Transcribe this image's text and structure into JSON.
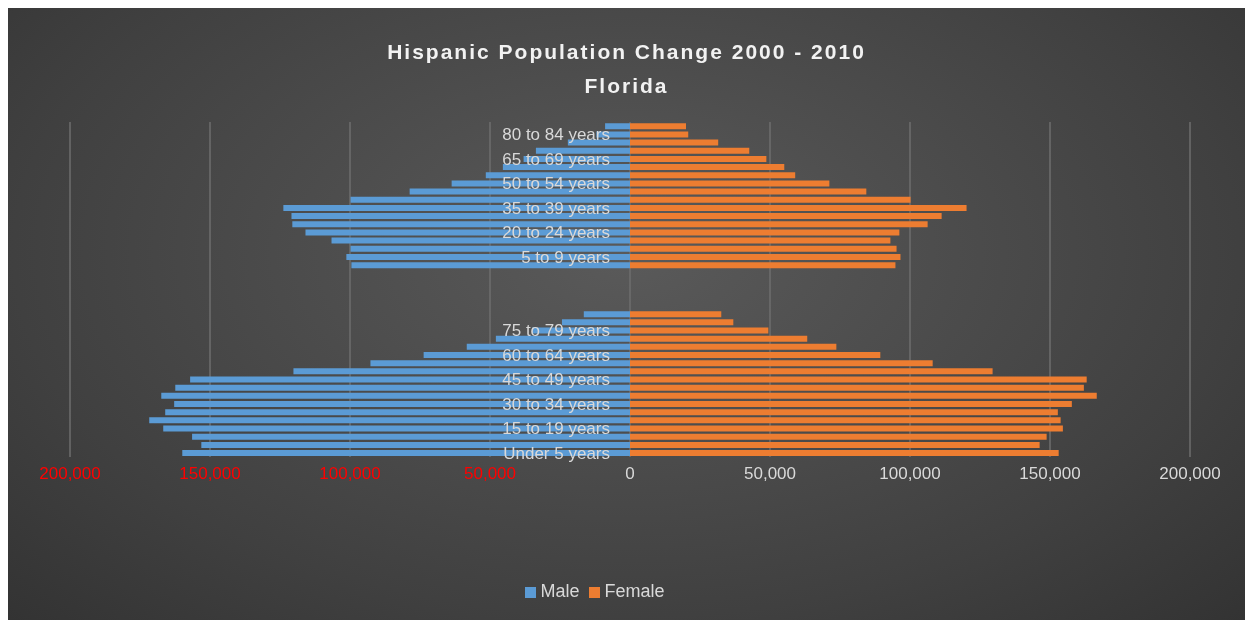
{
  "chart_data": {
    "type": "bar",
    "orientation": "horizontal",
    "title": "Hispanic Population Change 2000 - 2010",
    "subtitle": "Florida",
    "categories": [
      null,
      "80 to 84 years",
      null,
      null,
      "65 to 69 years",
      null,
      null,
      "50 to 54 years",
      null,
      null,
      "35 to 39 years",
      null,
      null,
      "20 to 24 years",
      null,
      null,
      "5 to 9 years",
      null,
      null,
      null,
      null,
      null,
      null,
      null,
      null,
      "75 to 79 years",
      null,
      null,
      "60 to 64 years",
      null,
      null,
      "45 to 49 years",
      null,
      null,
      "30 to 34 years",
      null,
      null,
      "15 to 19 years",
      null,
      null,
      "Under 5 years"
    ],
    "series": [
      {
        "name": "Male",
        "color": "#5b9bd5",
        "values": [
          -8900,
          -12000,
          -22200,
          -33600,
          -38000,
          -45400,
          -51500,
          -63700,
          -78700,
          -99800,
          -123800,
          -120900,
          -120600,
          -115900,
          -106600,
          -99800,
          -101300,
          -99500,
          null,
          null,
          null,
          null,
          null,
          -16500,
          -24300,
          -35000,
          -47900,
          -58300,
          -73700,
          -92700,
          -120200,
          -157100,
          -162400,
          -167400,
          -162800,
          -166000,
          -171700,
          -166700,
          -156400,
          -153100,
          -159900
        ]
      },
      {
        "name": "Female",
        "color": "#ed7d31",
        "values": [
          20000,
          20800,
          31500,
          42600,
          48700,
          55100,
          59000,
          71200,
          84400,
          100200,
          120200,
          111300,
          106300,
          96200,
          93000,
          95200,
          96600,
          94800,
          null,
          null,
          null,
          null,
          null,
          32600,
          36900,
          49400,
          63300,
          73700,
          89400,
          108100,
          129500,
          163100,
          162100,
          166700,
          157800,
          152800,
          153800,
          154600,
          148800,
          146300,
          153100
        ]
      }
    ],
    "xlim": [
      -200000,
      200000
    ],
    "xticks": [
      {
        "value": -200000,
        "label": "200,000"
      },
      {
        "value": -150000,
        "label": "150,000"
      },
      {
        "value": -100000,
        "label": "100,000"
      },
      {
        "value": -50000,
        "label": "50,000"
      },
      {
        "value": 0,
        "label": "0"
      },
      {
        "value": 50000,
        "label": "50,000"
      },
      {
        "value": 100000,
        "label": "100,000"
      },
      {
        "value": 150000,
        "label": "150,000"
      },
      {
        "value": 200000,
        "label": "200,000"
      }
    ],
    "stacked": true,
    "grid": "x",
    "legend": "bottom"
  }
}
